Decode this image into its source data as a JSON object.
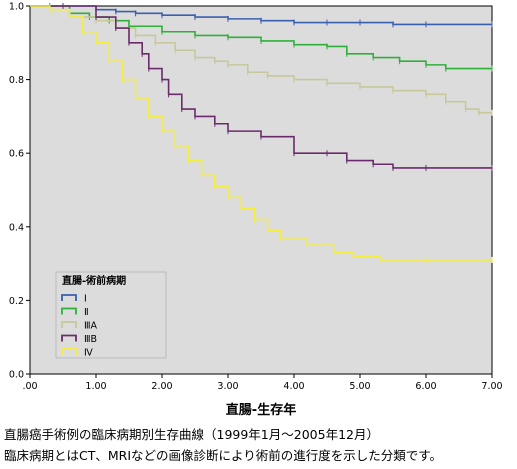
{
  "chart_data": {
    "type": "line",
    "title": "",
    "xlabel": "直腸-生存年",
    "ylabel": "",
    "xlim": [
      0,
      7
    ],
    "ylim": [
      0,
      1
    ],
    "x_ticks": [
      ".00",
      "1.00",
      "2.00",
      "3.00",
      "4.00",
      "5.00",
      "6.00",
      "7.00"
    ],
    "y_ticks": [
      "0.0",
      "0.2",
      "0.4",
      "0.6",
      "0.8",
      "1.0"
    ],
    "grid": false,
    "plot_background": "#dcdcdc",
    "legend": {
      "title": "直腸-術前病期",
      "position": "bottom-left"
    },
    "series": [
      {
        "name": "Ⅰ",
        "color": "#3a5fae",
        "points": [
          [
            0,
            1.0
          ],
          [
            0.5,
            1.0
          ],
          [
            1.0,
            0.99
          ],
          [
            1.3,
            0.985
          ],
          [
            1.6,
            0.98
          ],
          [
            2.0,
            0.975
          ],
          [
            2.5,
            0.97
          ],
          [
            3.0,
            0.965
          ],
          [
            3.5,
            0.96
          ],
          [
            4.0,
            0.955
          ],
          [
            4.5,
            0.955
          ],
          [
            5.0,
            0.955
          ],
          [
            5.5,
            0.95
          ],
          [
            6.0,
            0.95
          ],
          [
            7.0,
            0.95
          ]
        ]
      },
      {
        "name": "Ⅱ",
        "color": "#2fb03a",
        "points": [
          [
            0,
            1.0
          ],
          [
            0.3,
            1.0
          ],
          [
            0.6,
            0.98
          ],
          [
            0.9,
            0.97
          ],
          [
            1.2,
            0.96
          ],
          [
            1.5,
            0.945
          ],
          [
            2.0,
            0.93
          ],
          [
            2.5,
            0.92
          ],
          [
            3.0,
            0.915
          ],
          [
            3.5,
            0.905
          ],
          [
            4.0,
            0.895
          ],
          [
            4.5,
            0.89
          ],
          [
            4.8,
            0.87
          ],
          [
            5.2,
            0.86
          ],
          [
            5.6,
            0.85
          ],
          [
            6.0,
            0.84
          ],
          [
            6.3,
            0.83
          ],
          [
            7.0,
            0.83
          ]
        ]
      },
      {
        "name": "ⅢA",
        "color": "#c8c89a",
        "points": [
          [
            0,
            1.0
          ],
          [
            0.3,
            0.99
          ],
          [
            0.6,
            0.97
          ],
          [
            1.0,
            0.96
          ],
          [
            1.3,
            0.94
          ],
          [
            1.6,
            0.92
          ],
          [
            1.9,
            0.9
          ],
          [
            2.2,
            0.88
          ],
          [
            2.5,
            0.86
          ],
          [
            2.8,
            0.85
          ],
          [
            3.0,
            0.84
          ],
          [
            3.3,
            0.82
          ],
          [
            3.6,
            0.81
          ],
          [
            4.0,
            0.8
          ],
          [
            4.5,
            0.79
          ],
          [
            5.0,
            0.78
          ],
          [
            5.5,
            0.77
          ],
          [
            6.0,
            0.76
          ],
          [
            6.3,
            0.74
          ],
          [
            6.6,
            0.72
          ],
          [
            6.8,
            0.71
          ],
          [
            7.0,
            0.71
          ]
        ]
      },
      {
        "name": "ⅢB",
        "color": "#6b2b6b",
        "points": [
          [
            0,
            1.0
          ],
          [
            0.5,
            1.0
          ],
          [
            1.0,
            0.97
          ],
          [
            1.3,
            0.94
          ],
          [
            1.5,
            0.9
          ],
          [
            1.7,
            0.87
          ],
          [
            1.8,
            0.83
          ],
          [
            2.0,
            0.8
          ],
          [
            2.1,
            0.76
          ],
          [
            2.3,
            0.72
          ],
          [
            2.5,
            0.7
          ],
          [
            2.8,
            0.68
          ],
          [
            3.0,
            0.66
          ],
          [
            3.5,
            0.645
          ],
          [
            4.0,
            0.6
          ],
          [
            4.5,
            0.6
          ],
          [
            4.8,
            0.58
          ],
          [
            5.2,
            0.57
          ],
          [
            5.5,
            0.56
          ],
          [
            6.0,
            0.56
          ],
          [
            7.0,
            0.56
          ]
        ]
      },
      {
        "name": "Ⅳ",
        "color": "#f5ee3c",
        "points": [
          [
            0,
            1.0
          ],
          [
            0.3,
            0.99
          ],
          [
            0.6,
            0.97
          ],
          [
            0.8,
            0.93
          ],
          [
            1.0,
            0.9
          ],
          [
            1.2,
            0.85
          ],
          [
            1.4,
            0.8
          ],
          [
            1.6,
            0.75
          ],
          [
            1.8,
            0.7
          ],
          [
            2.0,
            0.66
          ],
          [
            2.2,
            0.62
          ],
          [
            2.4,
            0.58
          ],
          [
            2.6,
            0.54
          ],
          [
            2.8,
            0.51
          ],
          [
            3.0,
            0.48
          ],
          [
            3.2,
            0.45
          ],
          [
            3.4,
            0.42
          ],
          [
            3.6,
            0.39
          ],
          [
            3.8,
            0.37
          ],
          [
            4.2,
            0.35
          ],
          [
            4.6,
            0.33
          ],
          [
            4.9,
            0.32
          ],
          [
            5.3,
            0.31
          ],
          [
            6.0,
            0.31
          ],
          [
            7.0,
            0.31
          ]
        ]
      }
    ]
  },
  "captions": {
    "line1": "直腸癌手術例の臨床病期別生存曲線（1999年1月〜2005年12月）",
    "line2": "臨床病期とはCT、MRIなどの画像診断により術前の進行度を示した分類です。"
  }
}
